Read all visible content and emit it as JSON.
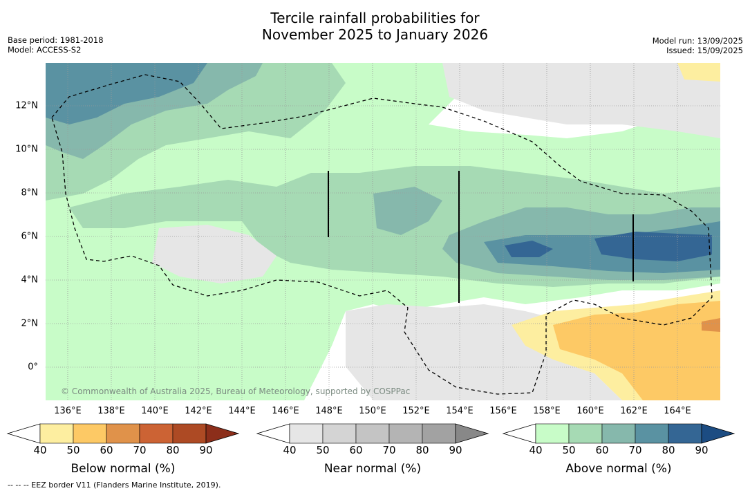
{
  "header": {
    "title_line1": "Tercile rainfall probabilities for",
    "title_line2": "November 2025 to January 2026",
    "base_period": "Base period: 1981-2018",
    "model": "Model: ACCESS-S2",
    "model_run": "Model run: 13/09/2025",
    "issued": "Issued: 15/09/2025"
  },
  "map": {
    "lon_labels": [
      "136°E",
      "138°E",
      "140°E",
      "142°E",
      "144°E",
      "146°E",
      "148°E",
      "150°E",
      "152°E",
      "154°E",
      "156°E",
      "158°E",
      "160°E",
      "162°E",
      "164°E"
    ],
    "lat_labels": [
      "12°N",
      "10°N",
      "8°N",
      "6°N",
      "4°N",
      "2°N",
      "0°"
    ],
    "copyright": "© Commonwealth of Australia 2025, Bureau of Meteorology, supported by COSPPac"
  },
  "colorbars": [
    {
      "title": "Below normal (%)",
      "ticks": [
        "40",
        "50",
        "60",
        "70",
        "80",
        "90"
      ],
      "colors": [
        "#fdeea0",
        "#fdc965",
        "#e0924a",
        "#cc6334",
        "#ad4a24",
        "#8c2e1a"
      ]
    },
    {
      "title": "Near normal (%)",
      "ticks": [
        "40",
        "50",
        "60",
        "70",
        "80",
        "90"
      ],
      "colors": [
        "#e6e6e6",
        "#d4d4d4",
        "#c4c4c4",
        "#b4b4b4",
        "#a2a2a2",
        "#888888"
      ]
    },
    {
      "title": "Above normal (%)",
      "ticks": [
        "40",
        "50",
        "60",
        "70",
        "80",
        "90"
      ],
      "colors": [
        "#c8fcc8",
        "#a6dab4",
        "#86b8ac",
        "#5a92a2",
        "#346694",
        "#1c4c82"
      ]
    }
  ],
  "footnote": "--  --  -- EEZ border V11 (Flanders Marine Institute, 2019)."
}
